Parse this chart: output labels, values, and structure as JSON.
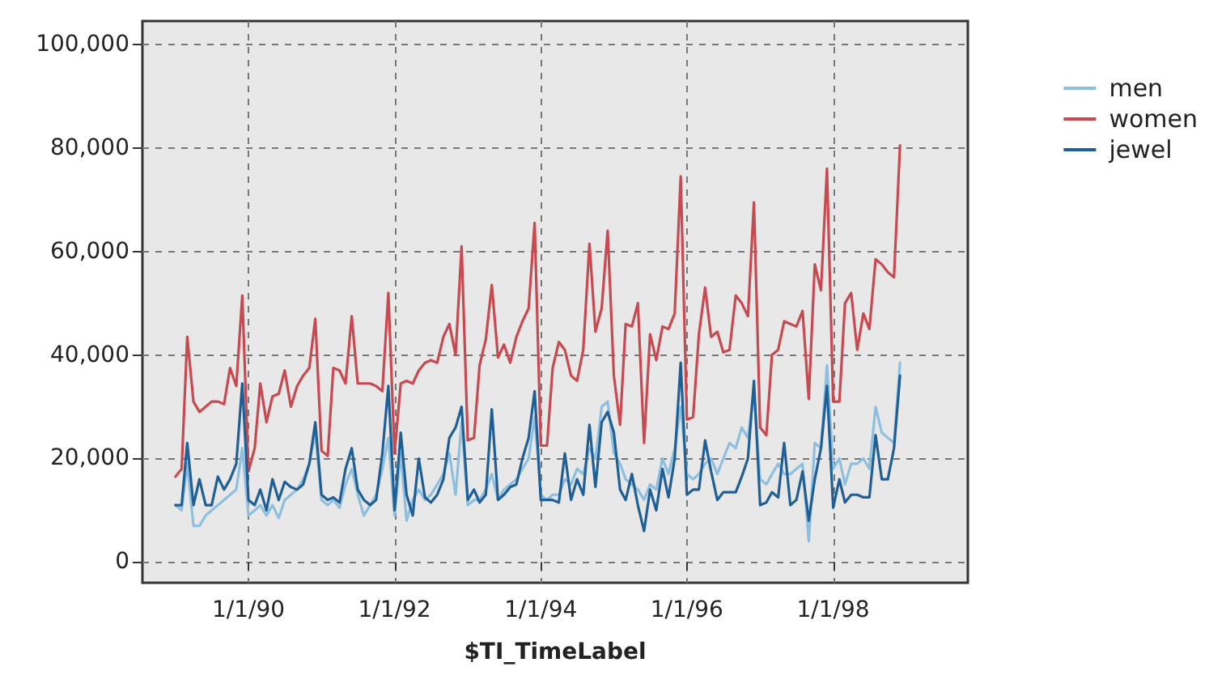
{
  "chart_data": {
    "type": "line",
    "xlabel": "$TI_TimeLabel",
    "legend": "right",
    "grid": true,
    "marker": "none",
    "line_style": "solid",
    "xlim": [
      "1988-07-20",
      "1999-11-05"
    ],
    "xticks": [
      {
        "value": "1990-01-01",
        "label": "1/1/90"
      },
      {
        "value": "1992-01-01",
        "label": "1/1/92"
      },
      {
        "value": "1994-01-01",
        "label": "1/1/94"
      },
      {
        "value": "1996-01-01",
        "label": "1/1/96"
      },
      {
        "value": "1998-01-01",
        "label": "1/1/98"
      }
    ],
    "ylim": [
      -4000,
      104500
    ],
    "yticks": [
      {
        "value": 0,
        "label": "0"
      },
      {
        "value": 20000,
        "label": "20,000"
      },
      {
        "value": 40000,
        "label": "40,000"
      },
      {
        "value": 60000,
        "label": "60,000"
      },
      {
        "value": 80000,
        "label": "80,000"
      },
      {
        "value": 100000,
        "label": "100,000"
      }
    ],
    "x": [
      "1989-01",
      "1989-02",
      "1989-03",
      "1989-04",
      "1989-05",
      "1989-06",
      "1989-07",
      "1989-08",
      "1989-09",
      "1989-10",
      "1989-11",
      "1989-12",
      "1990-01",
      "1990-02",
      "1990-03",
      "1990-04",
      "1990-05",
      "1990-06",
      "1990-07",
      "1990-08",
      "1990-09",
      "1990-10",
      "1990-11",
      "1990-12",
      "1991-01",
      "1991-02",
      "1991-03",
      "1991-04",
      "1991-05",
      "1991-06",
      "1991-07",
      "1991-08",
      "1991-09",
      "1991-10",
      "1991-11",
      "1991-12",
      "1992-01",
      "1992-02",
      "1992-03",
      "1992-04",
      "1992-05",
      "1992-06",
      "1992-07",
      "1992-08",
      "1992-09",
      "1992-10",
      "1992-11",
      "1992-12",
      "1993-01",
      "1993-02",
      "1993-03",
      "1993-04",
      "1993-05",
      "1993-06",
      "1993-07",
      "1993-08",
      "1993-09",
      "1993-10",
      "1993-11",
      "1993-12",
      "1994-01",
      "1994-02",
      "1994-03",
      "1994-04",
      "1994-05",
      "1994-06",
      "1994-07",
      "1994-08",
      "1994-09",
      "1994-10",
      "1994-11",
      "1994-12",
      "1995-01",
      "1995-02",
      "1995-03",
      "1995-04",
      "1995-05",
      "1995-06",
      "1995-07",
      "1995-08",
      "1995-09",
      "1995-10",
      "1995-11",
      "1995-12",
      "1996-01",
      "1996-02",
      "1996-03",
      "1996-04",
      "1996-05",
      "1996-06",
      "1996-07",
      "1996-08",
      "1996-09",
      "1996-10",
      "1996-11",
      "1996-12",
      "1997-01",
      "1997-02",
      "1997-03",
      "1997-04",
      "1997-05",
      "1997-06",
      "1997-07",
      "1997-08",
      "1997-09",
      "1997-10",
      "1997-11",
      "1997-12",
      "1998-01",
      "1998-02",
      "1998-03",
      "1998-04",
      "1998-05",
      "1998-06",
      "1998-07",
      "1998-08",
      "1998-09",
      "1998-10",
      "1998-11",
      "1998-12"
    ],
    "series": [
      {
        "name": "men",
        "color": "#8fbfdf",
        "values": [
          11000,
          10000,
          19000,
          7000,
          7000,
          9000,
          10000,
          11000,
          12000,
          13000,
          14000,
          22000,
          9000,
          10000,
          11000,
          9000,
          11000,
          8500,
          12000,
          13000,
          14000,
          16000,
          19000,
          25000,
          12000,
          11000,
          12000,
          10500,
          15000,
          18000,
          13000,
          9000,
          11000,
          13000,
          18000,
          24000,
          9000,
          21000,
          8000,
          12000,
          14000,
          12000,
          13000,
          15000,
          17000,
          21000,
          13000,
          27000,
          11000,
          12000,
          12000,
          14000,
          17000,
          12000,
          14000,
          15000,
          16000,
          18000,
          20000,
          28000,
          13000,
          12000,
          13000,
          13000,
          16000,
          15000,
          18000,
          17000,
          22000,
          20000,
          30000,
          31000,
          21000,
          19000,
          16000,
          15000,
          14000,
          12000,
          15000,
          14000,
          20000,
          17000,
          22000,
          30000,
          17000,
          16000,
          17000,
          19000,
          20000,
          17000,
          20000,
          23000,
          22000,
          26000,
          24000,
          33000,
          16000,
          15000,
          17000,
          19000,
          17000,
          17000,
          18000,
          19000,
          4000,
          23000,
          22000,
          38000,
          18000,
          20000,
          15000,
          19000,
          19000,
          20000,
          18000,
          30000,
          25000,
          24000,
          23000,
          38500
        ]
      },
      {
        "name": "women",
        "color": "#c8494f",
        "values": [
          16500,
          18000,
          43500,
          31000,
          29000,
          30000,
          31000,
          31000,
          30500,
          37500,
          34000,
          51500,
          17500,
          22000,
          34500,
          27000,
          32000,
          32500,
          37000,
          30000,
          34000,
          36000,
          37500,
          47000,
          21500,
          20500,
          37500,
          37000,
          34500,
          47500,
          34500,
          34500,
          34500,
          34000,
          33000,
          52000,
          21000,
          34500,
          35000,
          34500,
          37000,
          38500,
          39000,
          38500,
          43500,
          46000,
          40000,
          61000,
          23500,
          24000,
          38000,
          43000,
          53500,
          39500,
          42000,
          38500,
          43500,
          46500,
          49000,
          65500,
          22500,
          22500,
          37500,
          42500,
          41000,
          36000,
          35000,
          41000,
          61500,
          44500,
          49000,
          64000,
          36000,
          26500,
          46000,
          45500,
          50000,
          23000,
          44000,
          39000,
          45500,
          45000,
          48000,
          74500,
          27500,
          28000,
          44000,
          53000,
          43500,
          44500,
          40500,
          41000,
          51500,
          50000,
          47500,
          69500,
          26000,
          24500,
          40000,
          41000,
          46500,
          46000,
          45500,
          48500,
          31500,
          57500,
          52500,
          76000,
          31000,
          31000,
          50000,
          52000,
          41000,
          48000,
          45000,
          58500,
          57500,
          56000,
          55000,
          80500
        ]
      },
      {
        "name": "jewel",
        "color": "#1f5f96",
        "values": [
          11000,
          11000,
          23000,
          11000,
          16000,
          11000,
          11000,
          16500,
          14000,
          16000,
          19000,
          34500,
          12000,
          11000,
          14000,
          10000,
          16000,
          12000,
          15500,
          14500,
          14000,
          15000,
          19000,
          27000,
          13000,
          12000,
          12500,
          11500,
          18000,
          22000,
          14000,
          12000,
          11000,
          12000,
          21000,
          34000,
          10000,
          25000,
          13000,
          9000,
          20000,
          12500,
          11500,
          13000,
          16000,
          24000,
          26000,
          30000,
          12000,
          14000,
          11500,
          13000,
          29500,
          12000,
          13000,
          14500,
          15000,
          20000,
          24000,
          33000,
          12000,
          12000,
          12000,
          11500,
          21000,
          12000,
          16000,
          13000,
          26500,
          14500,
          27000,
          29000,
          25000,
          14000,
          12000,
          17000,
          11000,
          6000,
          14000,
          10000,
          18000,
          12500,
          20000,
          38500,
          13000,
          14000,
          14000,
          23500,
          17500,
          12000,
          13500,
          13500,
          13500,
          16500,
          20000,
          35000,
          11000,
          11500,
          13500,
          12500,
          23000,
          11000,
          12000,
          17500,
          8000,
          16000,
          22000,
          34000,
          10500,
          16000,
          11500,
          13000,
          13000,
          12500,
          12500,
          24500,
          16000,
          16000,
          22000,
          36000
        ]
      }
    ]
  }
}
